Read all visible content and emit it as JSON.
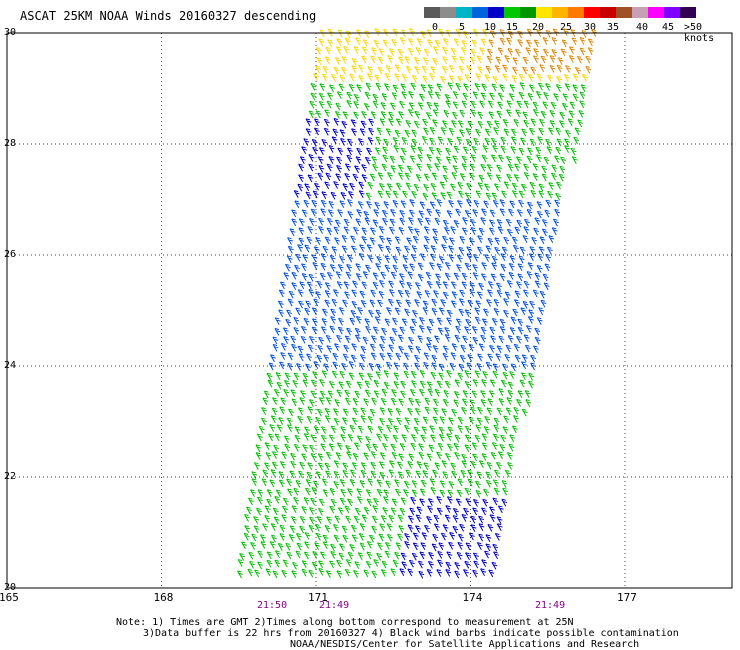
{
  "title": "ASCAT 25KM NOAA Winds 20160327 descending",
  "legend": {
    "colors": [
      "#5a5a5a",
      "#8c8c8c",
      "#00b4c8",
      "#0064dc",
      "#0000c8",
      "#00c800",
      "#009600",
      "#ffe600",
      "#ffb400",
      "#ff7800",
      "#ff0000",
      "#c80000",
      "#a05028",
      "#c8a0b4",
      "#ff00ff",
      "#8000ff",
      "#320050"
    ],
    "labels": [
      "0",
      "5",
      "10",
      "15",
      "20",
      "25",
      "30",
      "35",
      "40",
      "45",
      ">50 knots"
    ]
  },
  "y_axis": {
    "labels": [
      "30",
      "28",
      "26",
      "24",
      "22",
      "20"
    ]
  },
  "x_axis": {
    "labels": [
      "165",
      "168",
      "171",
      "174",
      "177"
    ]
  },
  "time_labels": [
    "21:50",
    "21:49",
    "21:49"
  ],
  "notes": [
    "Note: 1) Times are GMT 2)Times along bottom correspond to measurement at 25N",
    "3)Data buffer is 22 hrs from 20160327 4) Black wind barbs indicate possible contamination",
    "NOAA/NESDIS/Center for Satellite Applications and Research"
  ],
  "swath": {
    "lat_range": [
      20,
      30
    ],
    "lon_range": [
      165,
      179
    ],
    "wind_regions": [
      {
        "lat_min": 29.0,
        "lat_max": 30.0,
        "speed_kts": 25,
        "color": "#ffd700"
      },
      {
        "lat_min": 27.0,
        "lat_max": 29.0,
        "speed_kts": 18,
        "color": "#00c000"
      },
      {
        "lat_min": 23.8,
        "lat_max": 27.0,
        "speed_kts": 12,
        "color": "#0050e0"
      },
      {
        "lat_min": 20.0,
        "lat_max": 23.8,
        "speed_kts": 18,
        "color": "#00c000"
      }
    ]
  }
}
